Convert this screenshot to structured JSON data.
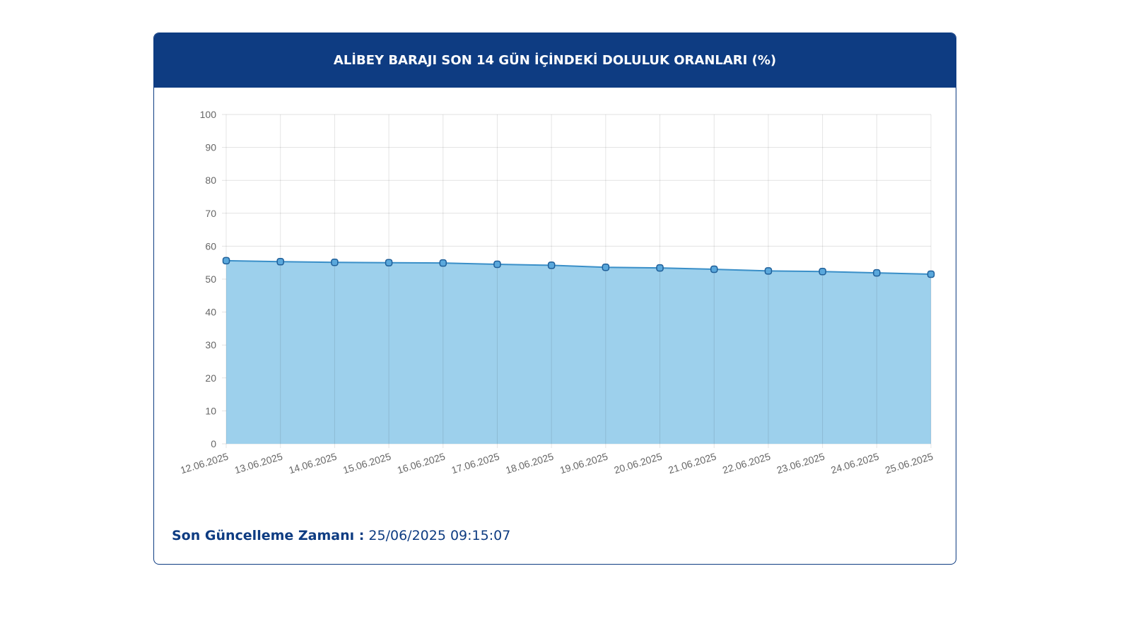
{
  "title": "ALİBEY BARAJI SON 14 GÜN İÇİNDEKİ DOLULUK ORANLARI (%)",
  "footer": {
    "label": "Son Güncelleme Zamanı :",
    "value": "25/06/2025 09:15:07"
  },
  "colors": {
    "header": "#0e3c82",
    "fill": "#9dd0ec",
    "line": "#3a8fc8"
  },
  "chart_data": {
    "type": "area",
    "title": "ALİBEY BARAJI SON 14 GÜN İÇİNDEKİ DOLULUK ORANLARI (%)",
    "categories": [
      "12.06.2025",
      "13.06.2025",
      "14.06.2025",
      "15.06.2025",
      "16.06.2025",
      "17.06.2025",
      "18.06.2025",
      "19.06.2025",
      "20.06.2025",
      "21.06.2025",
      "22.06.2025",
      "23.06.2025",
      "24.06.2025",
      "25.06.2025"
    ],
    "values": [
      55.6,
      55.3,
      55.1,
      55.0,
      54.9,
      54.5,
      54.2,
      53.6,
      53.4,
      53.0,
      52.5,
      52.3,
      51.9,
      51.5
    ],
    "ylim": [
      0,
      100
    ],
    "yticks": [
      0,
      10,
      20,
      30,
      40,
      50,
      60,
      70,
      80,
      90,
      100
    ],
    "grid": true,
    "xlabel": "",
    "ylabel": ""
  }
}
